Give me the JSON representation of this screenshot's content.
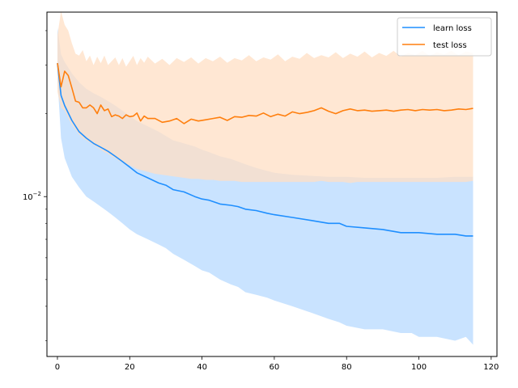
{
  "chart_data": {
    "type": "line",
    "title": "",
    "xlabel": "",
    "ylabel": "",
    "x_scale": "linear",
    "y_scale": "log",
    "xlim": [
      -2.9,
      121.6
    ],
    "ylim": [
      0.00263,
      0.0467
    ],
    "x_ticks": [
      0,
      20,
      40,
      60,
      80,
      100,
      120
    ],
    "y_major_ticks": [
      0.01
    ],
    "y_major_tick_labels": [
      "10^-2"
    ],
    "y_minor_ticks": [
      0.003,
      0.004,
      0.005,
      0.006,
      0.007,
      0.008,
      0.009,
      0.02,
      0.03,
      0.04
    ],
    "grid": false,
    "legend": {
      "placement": "top-right"
    },
    "series": [
      {
        "name": "learn loss",
        "color": "#1f8fff",
        "band_color": "#c9e3ff",
        "x": [
          0,
          1,
          2,
          4,
          6,
          8,
          10,
          12,
          14,
          16,
          18,
          20,
          22,
          25,
          28,
          30,
          32,
          35,
          38,
          40,
          42,
          45,
          48,
          50,
          52,
          55,
          58,
          60,
          65,
          70,
          75,
          78,
          80,
          85,
          90,
          95,
          98,
          100,
          105,
          110,
          113,
          115
        ],
        "mean": [
          0.0305,
          0.0233,
          0.0214,
          0.0189,
          0.0172,
          0.0163,
          0.0156,
          0.0151,
          0.0146,
          0.014,
          0.0134,
          0.0128,
          0.0122,
          0.0117,
          0.0112,
          0.011,
          0.0106,
          0.0104,
          0.01,
          0.0098,
          0.0097,
          0.0094,
          0.0093,
          0.0092,
          0.009,
          0.0089,
          0.0087,
          0.0086,
          0.0084,
          0.0082,
          0.008,
          0.008,
          0.0078,
          0.0077,
          0.0076,
          0.0074,
          0.0074,
          0.0074,
          0.0073,
          0.0073,
          0.0072,
          0.0072
        ],
        "lower": [
          0.0268,
          0.0163,
          0.0138,
          0.0118,
          0.0108,
          0.01,
          0.0096,
          0.0092,
          0.0088,
          0.0084,
          0.008,
          0.0076,
          0.0073,
          0.007,
          0.0067,
          0.0065,
          0.0062,
          0.0059,
          0.0056,
          0.0054,
          0.0053,
          0.005,
          0.0048,
          0.0047,
          0.0045,
          0.0044,
          0.0043,
          0.0042,
          0.004,
          0.0038,
          0.0036,
          0.0035,
          0.0034,
          0.0033,
          0.0033,
          0.0032,
          0.0032,
          0.0031,
          0.0031,
          0.003,
          0.0031,
          0.0029
        ],
        "upper": [
          0.041,
          0.0328,
          0.0308,
          0.028,
          0.026,
          0.0246,
          0.0237,
          0.023,
          0.0222,
          0.0214,
          0.0205,
          0.0196,
          0.0188,
          0.018,
          0.0172,
          0.0166,
          0.016,
          0.0156,
          0.0152,
          0.0148,
          0.0145,
          0.014,
          0.0137,
          0.0134,
          0.0131,
          0.0127,
          0.0124,
          0.0122,
          0.012,
          0.0119,
          0.0118,
          0.0118,
          0.0118,
          0.0117,
          0.0117,
          0.0117,
          0.0117,
          0.0117,
          0.0117,
          0.0118,
          0.0118,
          0.0118
        ]
      },
      {
        "name": "test loss",
        "color": "#ff7f0e",
        "band_color": "#ffdfc4",
        "x": [
          0,
          1,
          2,
          3,
          4,
          5,
          6,
          7,
          8,
          9,
          10,
          11,
          12,
          13,
          14,
          15,
          16,
          17,
          18,
          19,
          20,
          21,
          22,
          23,
          24,
          25,
          27,
          29,
          31,
          33,
          35,
          37,
          39,
          41,
          43,
          45,
          47,
          49,
          51,
          53,
          55,
          57,
          59,
          61,
          63,
          65,
          67,
          69,
          71,
          73,
          75,
          77,
          79,
          81,
          83,
          85,
          87,
          89,
          91,
          93,
          95,
          97,
          99,
          101,
          103,
          105,
          107,
          109,
          111,
          113,
          115
        ],
        "mean": [
          0.0305,
          0.025,
          0.0285,
          0.0275,
          0.0248,
          0.0222,
          0.022,
          0.021,
          0.021,
          0.0215,
          0.021,
          0.02,
          0.0215,
          0.0205,
          0.0208,
          0.0195,
          0.0198,
          0.0196,
          0.0192,
          0.0198,
          0.0195,
          0.0196,
          0.0201,
          0.0188,
          0.0196,
          0.0192,
          0.0192,
          0.0186,
          0.0188,
          0.0192,
          0.0184,
          0.0191,
          0.0188,
          0.019,
          0.0192,
          0.0194,
          0.0189,
          0.0195,
          0.0194,
          0.0197,
          0.0196,
          0.0201,
          0.0195,
          0.0199,
          0.0196,
          0.0203,
          0.02,
          0.0202,
          0.0205,
          0.021,
          0.0204,
          0.02,
          0.0205,
          0.0208,
          0.0205,
          0.0206,
          0.0204,
          0.0205,
          0.0206,
          0.0204,
          0.0206,
          0.0207,
          0.0205,
          0.0207,
          0.0206,
          0.0207,
          0.0205,
          0.0206,
          0.0208,
          0.0207,
          0.0209
        ],
        "lower": [
          0.024,
          0.021,
          0.0205,
          0.0193,
          0.0182,
          0.0175,
          0.0168,
          0.0163,
          0.016,
          0.0157,
          0.0154,
          0.0151,
          0.0148,
          0.0145,
          0.0143,
          0.014,
          0.0138,
          0.0135,
          0.0133,
          0.0131,
          0.013,
          0.0128,
          0.0126,
          0.0125,
          0.0124,
          0.0123,
          0.0121,
          0.012,
          0.0119,
          0.0118,
          0.0117,
          0.0116,
          0.0116,
          0.0115,
          0.0115,
          0.0114,
          0.0114,
          0.0114,
          0.0113,
          0.0113,
          0.0113,
          0.0113,
          0.0113,
          0.0113,
          0.0113,
          0.0113,
          0.0113,
          0.0113,
          0.0113,
          0.0114,
          0.0113,
          0.0113,
          0.0113,
          0.0112,
          0.0113,
          0.0113,
          0.0113,
          0.0113,
          0.0113,
          0.0113,
          0.0113,
          0.0113,
          0.0113,
          0.0113,
          0.0113,
          0.0113,
          0.0113,
          0.0113,
          0.0113,
          0.0113,
          0.0114
        ],
        "upper": [
          0.0385,
          0.047,
          0.042,
          0.04,
          0.036,
          0.033,
          0.0325,
          0.034,
          0.031,
          0.0325,
          0.03,
          0.0322,
          0.0305,
          0.0325,
          0.03,
          0.031,
          0.032,
          0.03,
          0.0318,
          0.0296,
          0.031,
          0.0324,
          0.03,
          0.0318,
          0.0306,
          0.0322,
          0.0304,
          0.0316,
          0.03,
          0.0318,
          0.0308,
          0.032,
          0.0304,
          0.0318,
          0.031,
          0.0322,
          0.0306,
          0.0318,
          0.0312,
          0.0326,
          0.031,
          0.032,
          0.0314,
          0.0328,
          0.031,
          0.0322,
          0.0316,
          0.0332,
          0.0318,
          0.0326,
          0.032,
          0.0334,
          0.0318,
          0.033,
          0.0322,
          0.0336,
          0.032,
          0.0332,
          0.0324,
          0.0338,
          0.0322,
          0.0332,
          0.0326,
          0.0338,
          0.0324,
          0.0334,
          0.0328,
          0.0338,
          0.0326,
          0.0336,
          0.0332
        ]
      }
    ]
  }
}
